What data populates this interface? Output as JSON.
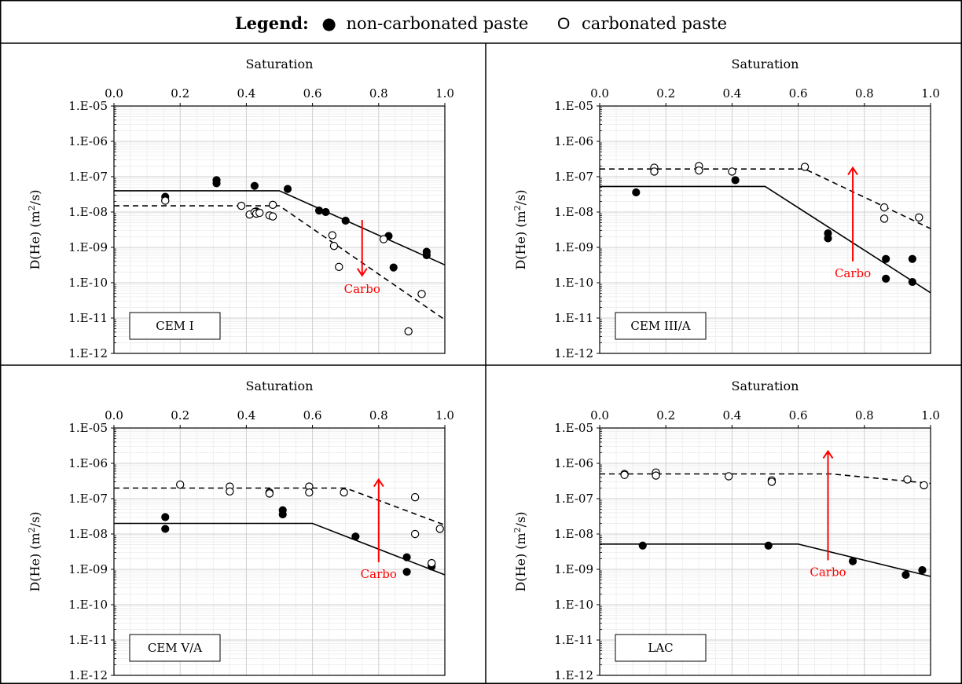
{
  "legend": {
    "title": "Legend:",
    "filled_symbol": "●",
    "filled_label": "non-carbonated paste",
    "open_symbol": "O",
    "open_label": "carbonated paste"
  },
  "chart_data": [
    {
      "type": "scatter",
      "panel_label": "CEM I",
      "xlabel": "Saturation",
      "ylabel_main": "D(He) (m",
      "ylabel_sup": "2",
      "ylabel_tail": "/s)",
      "xlim": [
        0.0,
        1.0
      ],
      "ylim": [
        1e-12,
        1e-05
      ],
      "y_scale": "log",
      "x_ticks": [
        "0.0",
        "0.2",
        "0.4",
        "0.6",
        "0.8",
        "1.0"
      ],
      "y_ticks": [
        "1.E-05",
        "1.E-06",
        "1.E-07",
        "1.E-08",
        "1.E-09",
        "1.E-10",
        "1.E-11",
        "1.E-12"
      ],
      "arrow": {
        "label": "Carbo",
        "x": 0.75,
        "y_from": 6e-09,
        "y_to": 1.6e-10
      },
      "series": [
        {
          "name": "non-carbonated paste",
          "marker": "filled",
          "points": [
            [
              0.155,
              2.7e-08
            ],
            [
              0.31,
              8e-08
            ],
            [
              0.31,
              6.5e-08
            ],
            [
              0.425,
              5.5e-08
            ],
            [
              0.43,
              1.05e-08
            ],
            [
              0.525,
              4.5e-08
            ],
            [
              0.62,
              1.1e-08
            ],
            [
              0.64,
              1e-08
            ],
            [
              0.7,
              5.7e-09
            ],
            [
              0.83,
              2.1e-09
            ],
            [
              0.845,
              2.7e-10
            ],
            [
              0.945,
              7.5e-10
            ],
            [
              0.945,
              6e-10
            ]
          ]
        },
        {
          "name": "carbonated paste",
          "marker": "open",
          "points": [
            [
              0.155,
              2.1e-08
            ],
            [
              0.385,
              1.5e-08
            ],
            [
              0.41,
              8.5e-09
            ],
            [
              0.425,
              1e-08
            ],
            [
              0.43,
              9e-09
            ],
            [
              0.44,
              9.5e-09
            ],
            [
              0.47,
              8e-09
            ],
            [
              0.48,
              7.5e-09
            ],
            [
              0.48,
              1.6e-08
            ],
            [
              0.66,
              2.2e-09
            ],
            [
              0.665,
              1.1e-09
            ],
            [
              0.68,
              2.8e-10
            ],
            [
              0.815,
              1.7e-09
            ],
            [
              0.93,
              4.8e-11
            ],
            [
              0.89,
              4.2e-12
            ]
          ]
        },
        {
          "name": "non-carbonated fit",
          "line": "solid",
          "points": [
            [
              0.0,
              4e-08
            ],
            [
              0.5,
              4e-08
            ],
            [
              1.0,
              3.2e-10
            ]
          ]
        },
        {
          "name": "carbonated fit",
          "line": "dashed",
          "points": [
            [
              0.0,
              1.5e-08
            ],
            [
              0.5,
              1.5e-08
            ],
            [
              1.0,
              9e-12
            ]
          ]
        }
      ]
    },
    {
      "type": "scatter",
      "panel_label": "CEM III/A",
      "xlabel": "Saturation",
      "ylabel_main": "D(He) (m",
      "ylabel_sup": "2",
      "ylabel_tail": "/s)",
      "xlim": [
        0.0,
        1.0
      ],
      "ylim": [
        1e-12,
        1e-05
      ],
      "y_scale": "log",
      "x_ticks": [
        "0.0",
        "0.2",
        "0.4",
        "0.6",
        "0.8",
        "1.0"
      ],
      "y_ticks": [
        "1.E-05",
        "1.E-06",
        "1.E-07",
        "1.E-08",
        "1.E-09",
        "1.E-10",
        "1.E-11",
        "1.E-12"
      ],
      "arrow": {
        "label": "Carbo",
        "x": 0.765,
        "y_from": 4e-10,
        "y_to": 1.8e-07
      },
      "series": [
        {
          "name": "non-carbonated paste",
          "marker": "filled",
          "points": [
            [
              0.11,
              3.6e-08
            ],
            [
              0.41,
              8e-08
            ],
            [
              0.69,
              2.5e-09
            ],
            [
              0.69,
              1.8e-09
            ],
            [
              0.865,
              4.7e-10
            ],
            [
              0.865,
              1.3e-10
            ],
            [
              0.945,
              4.7e-10
            ],
            [
              0.945,
              1.05e-10
            ]
          ]
        },
        {
          "name": "carbonated paste",
          "marker": "open",
          "points": [
            [
              0.165,
              1.8e-07
            ],
            [
              0.165,
              1.4e-07
            ],
            [
              0.3,
              2e-07
            ],
            [
              0.3,
              1.5e-07
            ],
            [
              0.4,
              1.4e-07
            ],
            [
              0.62,
              1.9e-07
            ],
            [
              0.86,
              1.35e-08
            ],
            [
              0.86,
              6.5e-09
            ],
            [
              0.965,
              7e-09
            ]
          ]
        },
        {
          "name": "non-carbonated fit",
          "line": "solid",
          "points": [
            [
              0.0,
              5.3e-08
            ],
            [
              0.5,
              5.3e-08
            ],
            [
              1.0,
              5.2e-11
            ]
          ]
        },
        {
          "name": "carbonated fit",
          "line": "dashed",
          "points": [
            [
              0.0,
              1.65e-07
            ],
            [
              0.62,
              1.65e-07
            ],
            [
              1.0,
              3.4e-09
            ]
          ]
        }
      ]
    },
    {
      "type": "scatter",
      "panel_label": "CEM V/A",
      "xlabel": "Saturation",
      "ylabel_main": "D(He) (m",
      "ylabel_sup": "2",
      "ylabel_tail": "/s)",
      "xlim": [
        0.0,
        1.0
      ],
      "ylim": [
        1e-12,
        1e-05
      ],
      "y_scale": "log",
      "x_ticks": [
        "0.0",
        "0.2",
        "0.4",
        "0.6",
        "0.8",
        "1.0"
      ],
      "y_ticks": [
        "1.E-05",
        "1.E-06",
        "1.E-07",
        "1.E-08",
        "1.E-09",
        "1.E-10",
        "1.E-11",
        "1.E-12"
      ],
      "arrow": {
        "label": "Carbo",
        "x": 0.8,
        "y_from": 1.6e-09,
        "y_to": 3.5e-07
      },
      "series": [
        {
          "name": "non-carbonated paste",
          "marker": "filled",
          "points": [
            [
              0.155,
              3e-08
            ],
            [
              0.155,
              1.4e-08
            ],
            [
              0.51,
              4.7e-08
            ],
            [
              0.51,
              3.6e-08
            ],
            [
              0.73,
              8.5e-09
            ],
            [
              0.885,
              2.2e-09
            ],
            [
              0.885,
              8.5e-10
            ],
            [
              0.96,
              1.4e-09
            ],
            [
              0.96,
              1.2e-09
            ]
          ]
        },
        {
          "name": "carbonated paste",
          "marker": "open",
          "points": [
            [
              0.2,
              2.5e-07
            ],
            [
              0.35,
              2.2e-07
            ],
            [
              0.35,
              1.6e-07
            ],
            [
              0.47,
              1.5e-07
            ],
            [
              0.47,
              1.4e-07
            ],
            [
              0.59,
              2.2e-07
            ],
            [
              0.59,
              1.5e-07
            ],
            [
              0.695,
              1.5e-07
            ],
            [
              0.91,
              1.1e-07
            ],
            [
              0.91,
              1e-08
            ],
            [
              0.985,
              1.4e-08
            ],
            [
              0.96,
              1.5e-09
            ]
          ]
        },
        {
          "name": "non-carbonated fit",
          "line": "solid",
          "points": [
            [
              0.0,
              2e-08
            ],
            [
              0.6,
              2e-08
            ],
            [
              1.0,
              7e-10
            ]
          ]
        },
        {
          "name": "carbonated fit",
          "line": "dashed",
          "points": [
            [
              0.0,
              2e-07
            ],
            [
              0.7,
              2e-07
            ],
            [
              1.0,
              1.8e-08
            ]
          ]
        }
      ]
    },
    {
      "type": "scatter",
      "panel_label": "LAC",
      "xlabel": "Saturation",
      "ylabel_main": "D(He) (m",
      "ylabel_sup": "2",
      "ylabel_tail": "/s)",
      "xlim": [
        0.0,
        1.0
      ],
      "ylim": [
        1e-12,
        1e-05
      ],
      "y_scale": "log",
      "x_ticks": [
        "0.0",
        "0.2",
        "0.4",
        "0.6",
        "0.8",
        "1.0"
      ],
      "y_ticks": [
        "1.E-05",
        "1.E-06",
        "1.E-07",
        "1.E-08",
        "1.E-09",
        "1.E-10",
        "1.E-11",
        "1.E-12"
      ],
      "arrow": {
        "label": "Carbo",
        "x": 0.69,
        "y_from": 1.8e-09,
        "y_to": 2.2e-06
      },
      "series": [
        {
          "name": "non-carbonated paste",
          "marker": "filled",
          "points": [
            [
              0.13,
              4.7e-09
            ],
            [
              0.51,
              4.7e-09
            ],
            [
              0.765,
              1.7e-09
            ],
            [
              0.925,
              7e-10
            ],
            [
              0.975,
              9.5e-10
            ]
          ]
        },
        {
          "name": "carbonated paste",
          "marker": "open",
          "points": [
            [
              0.075,
              5e-07
            ],
            [
              0.075,
              4.7e-07
            ],
            [
              0.17,
              5.5e-07
            ],
            [
              0.17,
              4.5e-07
            ],
            [
              0.39,
              4.3e-07
            ],
            [
              0.52,
              3.3e-07
            ],
            [
              0.52,
              3e-07
            ],
            [
              0.93,
              3.5e-07
            ],
            [
              0.98,
              2.4e-07
            ]
          ]
        },
        {
          "name": "non-carbonated fit",
          "line": "solid",
          "points": [
            [
              0.0,
              5.2e-09
            ],
            [
              0.6,
              5.2e-09
            ],
            [
              1.0,
              6.3e-10
            ]
          ]
        },
        {
          "name": "carbonated fit",
          "line": "dashed",
          "points": [
            [
              0.0,
              5e-07
            ],
            [
              0.7,
              5e-07
            ],
            [
              1.0,
              2.7e-07
            ]
          ]
        }
      ]
    }
  ]
}
